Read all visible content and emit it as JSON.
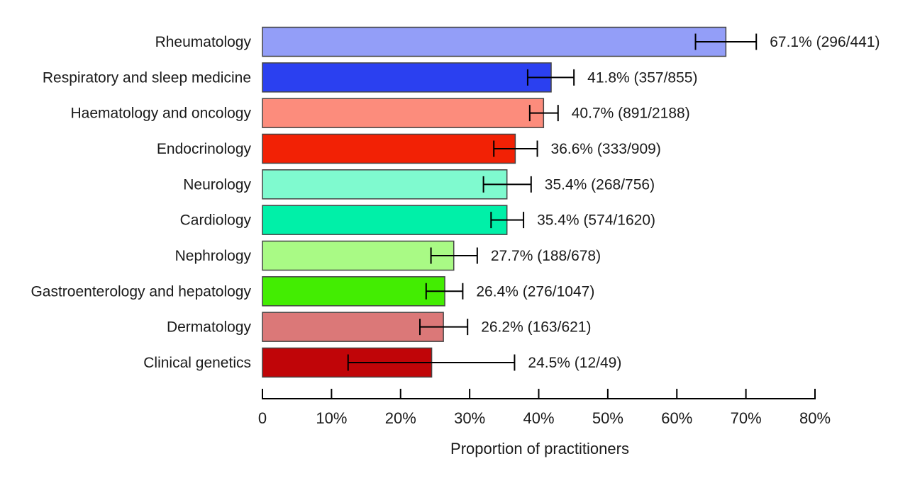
{
  "figure": {
    "background": "#ffffff"
  },
  "style": {
    "bar_border_color": "#444444",
    "error_bar_color": "#000000",
    "axis_color": "#000000",
    "text_color": "#1a1a1a"
  },
  "chart_data": {
    "type": "bar",
    "orientation": "horizontal",
    "title": "",
    "xlabel": "Proportion of practitioners",
    "ylabel": "",
    "xlim": [
      0,
      80
    ],
    "x_tick_labels": [
      "0",
      "10%",
      "20%",
      "30%",
      "40%",
      "50%",
      "60%",
      "70%",
      "80%"
    ],
    "grid": false,
    "legend": false,
    "rows": [
      {
        "category": "Rheumatology",
        "value": 67.1,
        "label": "67.1% (296/441)",
        "numerator": 296,
        "denominator": 441,
        "ci_low": 62.7,
        "ci_high": 71.5,
        "color": "#939EF8"
      },
      {
        "category": "Respiratory and sleep medicine",
        "value": 41.8,
        "label": "41.8% (357/855)",
        "numerator": 357,
        "denominator": 855,
        "ci_low": 38.4,
        "ci_high": 45.1,
        "color": "#2B40F0"
      },
      {
        "category": "Haematology and oncology",
        "value": 40.7,
        "label": "40.7% (891/2188)",
        "numerator": 891,
        "denominator": 2188,
        "ci_low": 38.7,
        "ci_high": 42.8,
        "color": "#FC8C7C"
      },
      {
        "category": "Endocrinology",
        "value": 36.6,
        "label": "36.6% (333/909)",
        "numerator": 333,
        "denominator": 909,
        "ci_low": 33.5,
        "ci_high": 39.8,
        "color": "#F22105"
      },
      {
        "category": "Neurology",
        "value": 35.4,
        "label": "35.4% (268/756)",
        "numerator": 268,
        "denominator": 756,
        "ci_low": 32.0,
        "ci_high": 38.9,
        "color": "#7FFACF"
      },
      {
        "category": "Cardiology",
        "value": 35.4,
        "label": "35.4% (574/1620)",
        "numerator": 574,
        "denominator": 1620,
        "ci_low": 33.1,
        "ci_high": 37.8,
        "color": "#00F0A8"
      },
      {
        "category": "Nephrology",
        "value": 27.7,
        "label": "27.7% (188/678)",
        "numerator": 188,
        "denominator": 678,
        "ci_low": 24.4,
        "ci_high": 31.1,
        "color": "#A9FA85"
      },
      {
        "category": "Gastroenterology and hepatology",
        "value": 26.4,
        "label": "26.4% (276/1047)",
        "numerator": 276,
        "denominator": 1047,
        "ci_low": 23.7,
        "ci_high": 29.0,
        "color": "#43ED02"
      },
      {
        "category": "Dermatology",
        "value": 26.2,
        "label": "26.2% (163/621)",
        "numerator": 163,
        "denominator": 621,
        "ci_low": 22.8,
        "ci_high": 29.7,
        "color": "#DB7878"
      },
      {
        "category": "Clinical genetics",
        "value": 24.5,
        "label": "24.5% (12/49)",
        "numerator": 12,
        "denominator": 49,
        "ci_low": 12.4,
        "ci_high": 36.5,
        "color": "#C00508"
      }
    ]
  }
}
